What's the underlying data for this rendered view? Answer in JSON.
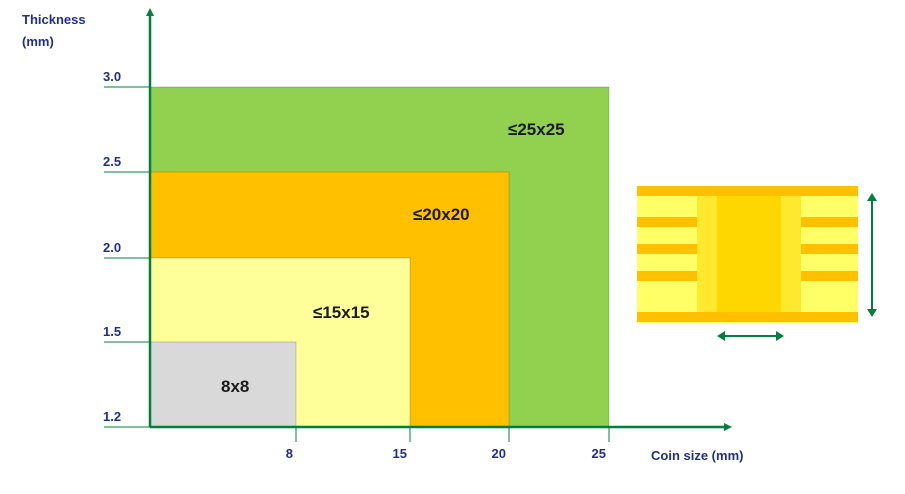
{
  "chart_data": {
    "type": "area",
    "xlabel": "Coin size (mm)",
    "ylabel_lines": [
      "Thickness",
      "(mm)"
    ],
    "x_ticks": [
      "8",
      "15",
      "20",
      "25"
    ],
    "y_ticks": [
      "1.2",
      "1.5",
      "2.0",
      "2.5",
      "3.0"
    ],
    "regions": [
      {
        "label": "≤25x25",
        "max_size": 25,
        "max_thickness": 3.0,
        "color": "#92d050"
      },
      {
        "label": "≤20x20",
        "max_size": 20,
        "max_thickness": 2.5,
        "color": "#ffc000"
      },
      {
        "label": "≤15x15",
        "max_size": 15,
        "max_thickness": 2.0,
        "color": "#ffff99"
      },
      {
        "label": "8x8",
        "max_size": 8,
        "max_thickness": 1.5,
        "color": "#d9d9d9"
      }
    ]
  },
  "colors": {
    "axis": "#00803c",
    "tick_text": "#1f2f8f",
    "pcb_copper": "#ffc000",
    "pcb_substrate": "#ffff66",
    "coin": "#ffd700"
  },
  "icons": {
    "pcb": "pcb-cross-section-icon",
    "thickness_arrow": "vertical-double-arrow-icon",
    "size_arrow": "horizontal-double-arrow-icon"
  }
}
